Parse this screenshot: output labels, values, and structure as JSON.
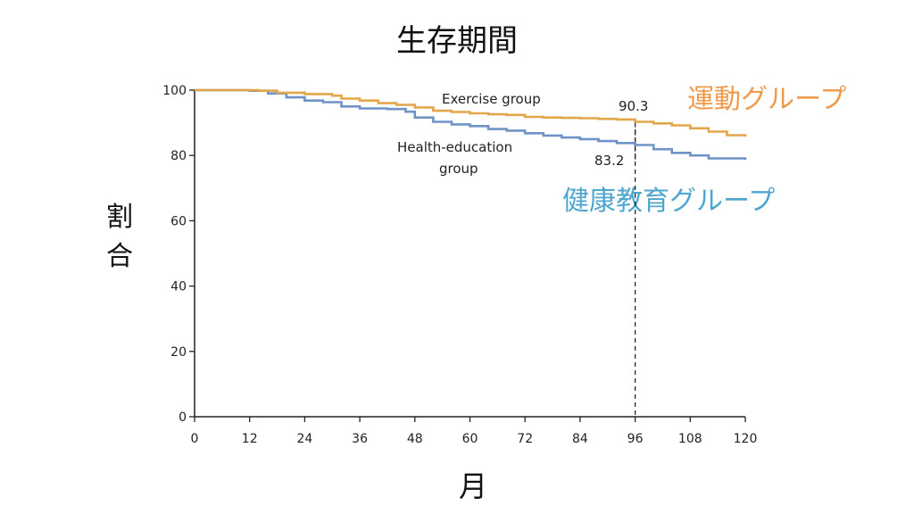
{
  "title": "生存期間",
  "ylabel": "割合",
  "xlabel": "月",
  "labels": {
    "exercise_jp": "運動グループ",
    "health_jp": "健康教育グループ",
    "exercise_en": "Exercise group",
    "health_en_line1": "Health-education",
    "health_en_line2": "group",
    "exercise_value": "90.3",
    "health_value": "83.2"
  },
  "colors": {
    "exercise": "#e3a64a",
    "health": "#6f93c7",
    "exercise_jp": "#ef9a4b",
    "health_jp": "#4ea6cf"
  },
  "chart_data": {
    "type": "line",
    "title": "生存期間",
    "xlabel": "月",
    "ylabel": "割合",
    "xlim": [
      0,
      120
    ],
    "ylim": [
      0,
      100
    ],
    "xticks": [
      0,
      12,
      24,
      36,
      48,
      60,
      72,
      84,
      96,
      108,
      120
    ],
    "yticks": [
      0,
      20,
      40,
      60,
      80,
      100
    ],
    "grid": false,
    "reference_line_x": 96,
    "series": [
      {
        "name": "Exercise group",
        "x": [
          0,
          6,
          14,
          18,
          24,
          30,
          32,
          36,
          40,
          44,
          48,
          52,
          56,
          60,
          64,
          68,
          72,
          76,
          80,
          84,
          88,
          92,
          96,
          100,
          104,
          108,
          112,
          116,
          120
        ],
        "y": [
          100,
          100,
          99.8,
          99.2,
          98.8,
          98.3,
          97.4,
          96.8,
          96.0,
          95.5,
          94.7,
          93.7,
          93.3,
          92.9,
          92.6,
          92.4,
          91.8,
          91.6,
          91.5,
          91.4,
          91.2,
          91.0,
          90.3,
          89.8,
          89.2,
          88.3,
          87.3,
          86.2,
          85.8
        ]
      },
      {
        "name": "Health-education group",
        "x": [
          0,
          6,
          12,
          16,
          20,
          24,
          28,
          32,
          36,
          42,
          46,
          48,
          52,
          56,
          60,
          64,
          68,
          72,
          76,
          80,
          84,
          88,
          92,
          96,
          100,
          104,
          108,
          112,
          120
        ],
        "y": [
          100,
          100,
          99.8,
          99.0,
          97.8,
          96.8,
          96.3,
          95.0,
          94.4,
          94.2,
          93.4,
          91.6,
          90.3,
          89.5,
          89.0,
          88.1,
          87.6,
          86.8,
          86.1,
          85.5,
          85.0,
          84.4,
          83.8,
          83.2,
          81.9,
          80.8,
          80.0,
          79.1,
          78.7
        ]
      }
    ]
  }
}
